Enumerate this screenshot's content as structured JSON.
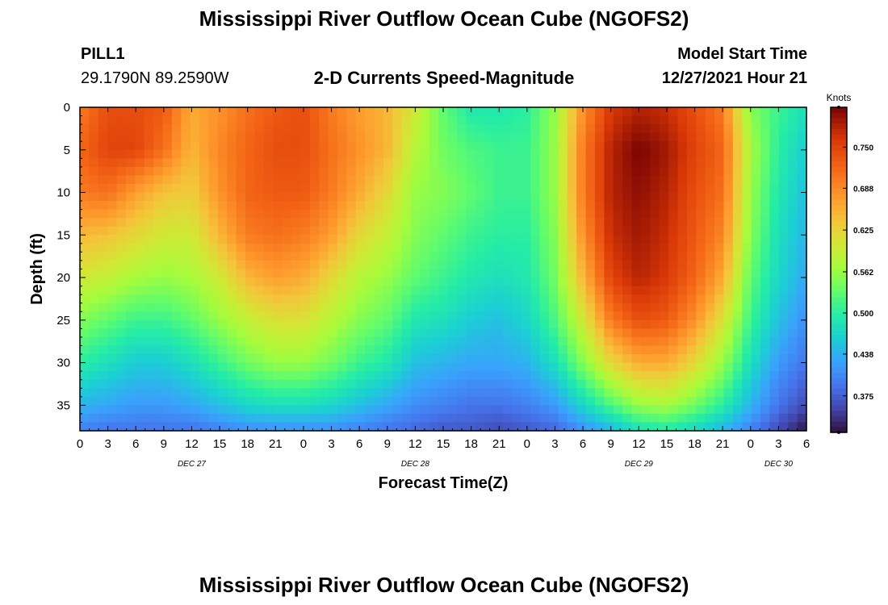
{
  "header": {
    "title": "Mississippi River Outflow Ocean Cube (NGOFS2)",
    "station_id": "PILL1",
    "coordinates": "29.1790N  89.2590W",
    "subtitle": "2-D Currents Speed-Magnitude",
    "model_start_label": "Model Start Time",
    "model_start_value": "12/27/2021 Hour 21"
  },
  "footer": {
    "title": "Mississippi River Outflow Ocean Cube (NGOFS2)"
  },
  "colors": {
    "frame": "#000000",
    "background": "#ffffff"
  },
  "chart_data": {
    "type": "heatmap",
    "title": "2-D Currents Speed-Magnitude",
    "xlabel": "Forecast Time(Z)",
    "ylabel": "Depth (ft)",
    "colorbar_label": "Knots",
    "x_range_hours": [
      0,
      78
    ],
    "y_range_ft": [
      0,
      38
    ],
    "y_inverted": true,
    "x_ticks": [
      {
        "hour": 0,
        "label": "0"
      },
      {
        "hour": 3,
        "label": "3"
      },
      {
        "hour": 6,
        "label": "6"
      },
      {
        "hour": 9,
        "label": "9"
      },
      {
        "hour": 12,
        "label": "12"
      },
      {
        "hour": 15,
        "label": "15"
      },
      {
        "hour": 18,
        "label": "18"
      },
      {
        "hour": 21,
        "label": "21"
      },
      {
        "hour": 24,
        "label": "0"
      },
      {
        "hour": 27,
        "label": "3"
      },
      {
        "hour": 30,
        "label": "6"
      },
      {
        "hour": 33,
        "label": "9"
      },
      {
        "hour": 36,
        "label": "12"
      },
      {
        "hour": 39,
        "label": "15"
      },
      {
        "hour": 42,
        "label": "18"
      },
      {
        "hour": 45,
        "label": "21"
      },
      {
        "hour": 48,
        "label": "0"
      },
      {
        "hour": 51,
        "label": "3"
      },
      {
        "hour": 54,
        "label": "6"
      },
      {
        "hour": 57,
        "label": "9"
      },
      {
        "hour": 60,
        "label": "12"
      },
      {
        "hour": 63,
        "label": "15"
      },
      {
        "hour": 66,
        "label": "18"
      },
      {
        "hour": 69,
        "label": "21"
      },
      {
        "hour": 72,
        "label": "0"
      },
      {
        "hour": 75,
        "label": "3"
      },
      {
        "hour": 78,
        "label": "6"
      }
    ],
    "date_labels": [
      {
        "hour": 12,
        "label": "DEC 27"
      },
      {
        "hour": 36,
        "label": "DEC 28"
      },
      {
        "hour": 60,
        "label": "DEC 29"
      },
      {
        "hour": 75,
        "label": "DEC 30"
      }
    ],
    "y_ticks": [
      0,
      5,
      10,
      15,
      20,
      25,
      30,
      35
    ],
    "color_scale": {
      "min": 0.32,
      "max": 0.81,
      "ticks": [
        0.375,
        0.438,
        0.5,
        0.562,
        0.625,
        0.688,
        0.75
      ],
      "tick_labels": [
        "0.375",
        "0.438",
        "0.500",
        "0.562",
        "0.625",
        "0.688",
        "0.750"
      ]
    },
    "speed_grid": {
      "hours": [
        0,
        3,
        6,
        9,
        12,
        15,
        18,
        21,
        24,
        27,
        30,
        33,
        36,
        39,
        42,
        45,
        48,
        51,
        54,
        57,
        60,
        63,
        66,
        69,
        72,
        75,
        78
      ],
      "depths_ft": [
        0,
        5,
        10,
        15,
        20,
        25,
        30,
        35,
        38
      ],
      "values_knots": [
        [
          0.7,
          0.74,
          0.74,
          0.73,
          0.66,
          0.68,
          0.71,
          0.73,
          0.74,
          0.7,
          0.67,
          0.65,
          0.6,
          0.53,
          0.49,
          0.49,
          0.5,
          0.56,
          0.68,
          0.76,
          0.78,
          0.77,
          0.74,
          0.7,
          0.55,
          0.51,
          0.48
        ],
        [
          0.72,
          0.75,
          0.75,
          0.71,
          0.65,
          0.69,
          0.72,
          0.74,
          0.74,
          0.71,
          0.68,
          0.65,
          0.58,
          0.54,
          0.52,
          0.51,
          0.51,
          0.56,
          0.7,
          0.78,
          0.81,
          0.79,
          0.75,
          0.72,
          0.57,
          0.5,
          0.46
        ],
        [
          0.7,
          0.71,
          0.67,
          0.64,
          0.63,
          0.68,
          0.72,
          0.73,
          0.73,
          0.7,
          0.66,
          0.62,
          0.56,
          0.55,
          0.53,
          0.51,
          0.51,
          0.56,
          0.7,
          0.78,
          0.8,
          0.78,
          0.74,
          0.71,
          0.56,
          0.49,
          0.45
        ],
        [
          0.65,
          0.64,
          0.62,
          0.6,
          0.6,
          0.65,
          0.7,
          0.71,
          0.7,
          0.67,
          0.62,
          0.59,
          0.55,
          0.53,
          0.51,
          0.5,
          0.5,
          0.55,
          0.68,
          0.77,
          0.79,
          0.77,
          0.73,
          0.69,
          0.55,
          0.48,
          0.44
        ],
        [
          0.6,
          0.59,
          0.57,
          0.56,
          0.57,
          0.6,
          0.65,
          0.67,
          0.66,
          0.62,
          0.58,
          0.56,
          0.53,
          0.51,
          0.49,
          0.48,
          0.49,
          0.54,
          0.65,
          0.75,
          0.78,
          0.76,
          0.72,
          0.66,
          0.53,
          0.47,
          0.43
        ],
        [
          0.55,
          0.53,
          0.51,
          0.51,
          0.53,
          0.56,
          0.59,
          0.61,
          0.61,
          0.58,
          0.55,
          0.53,
          0.49,
          0.48,
          0.46,
          0.45,
          0.47,
          0.52,
          0.6,
          0.7,
          0.74,
          0.73,
          0.68,
          0.61,
          0.51,
          0.45,
          0.41
        ],
        [
          0.5,
          0.48,
          0.46,
          0.46,
          0.48,
          0.51,
          0.54,
          0.56,
          0.56,
          0.54,
          0.51,
          0.49,
          0.45,
          0.44,
          0.43,
          0.43,
          0.44,
          0.48,
          0.55,
          0.62,
          0.66,
          0.66,
          0.62,
          0.56,
          0.48,
          0.42,
          0.39
        ],
        [
          0.44,
          0.43,
          0.42,
          0.42,
          0.43,
          0.45,
          0.47,
          0.48,
          0.48,
          0.47,
          0.45,
          0.43,
          0.41,
          0.4,
          0.39,
          0.39,
          0.4,
          0.42,
          0.47,
          0.52,
          0.56,
          0.57,
          0.54,
          0.5,
          0.44,
          0.39,
          0.36
        ],
        [
          0.4,
          0.39,
          0.39,
          0.39,
          0.39,
          0.4,
          0.41,
          0.41,
          0.41,
          0.41,
          0.4,
          0.39,
          0.38,
          0.37,
          0.37,
          0.36,
          0.37,
          0.38,
          0.41,
          0.44,
          0.48,
          0.49,
          0.47,
          0.44,
          0.4,
          0.36,
          0.32
        ]
      ]
    }
  }
}
